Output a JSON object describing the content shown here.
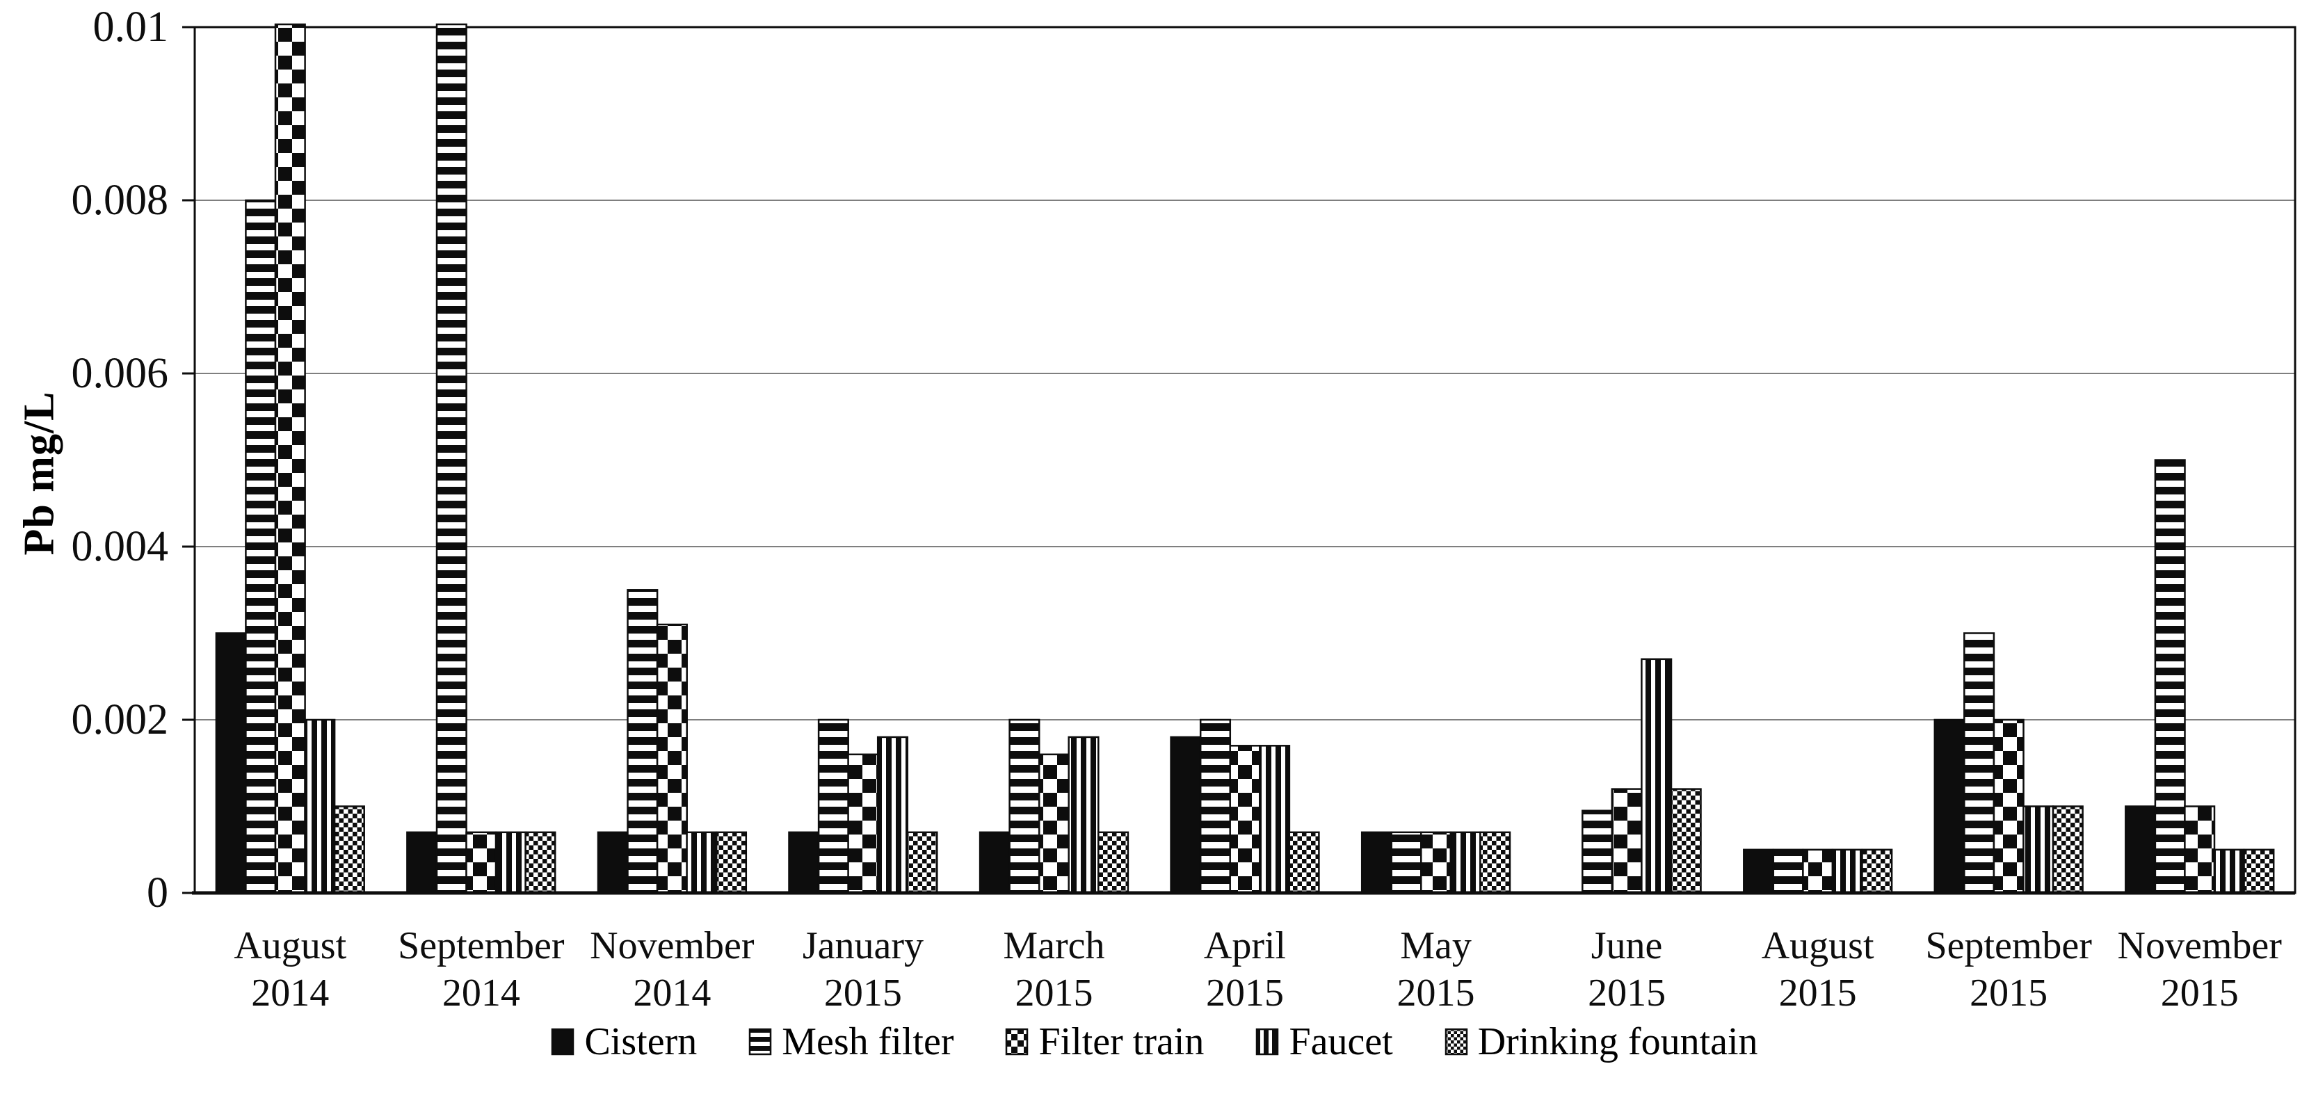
{
  "figure": {
    "background": "#ffffff",
    "ink_color": "#0d0d0d",
    "gridline_color": "#7f7f7f"
  },
  "chart_data": {
    "type": "bar",
    "title": "",
    "xlabel": "",
    "ylabel": "Pb mg/L",
    "ylim": [
      0,
      0.01
    ],
    "yticks": [
      0,
      0.002,
      0.004,
      0.006,
      0.008,
      0.01
    ],
    "ytick_labels": [
      "0",
      "0.002",
      "0.004",
      "0.006",
      "0.008",
      "0.01"
    ],
    "grid": "horizontal",
    "legend_position": "bottom",
    "categories": [
      {
        "month": "August",
        "year": "2014"
      },
      {
        "month": "September",
        "year": "2014"
      },
      {
        "month": "November",
        "year": "2014"
      },
      {
        "month": "January",
        "year": "2015"
      },
      {
        "month": "March",
        "year": "2015"
      },
      {
        "month": "April",
        "year": "2015"
      },
      {
        "month": "May",
        "year": "2015"
      },
      {
        "month": "June",
        "year": "2015"
      },
      {
        "month": "August",
        "year": "2015"
      },
      {
        "month": "September",
        "year": "2015"
      },
      {
        "month": "November",
        "year": "2015"
      }
    ],
    "series": [
      {
        "name": "Cistern",
        "pattern": "solid-black",
        "values": [
          0.003,
          0.0007,
          0.0007,
          0.0007,
          0.0007,
          0.0018,
          0.0007,
          0,
          0.0005,
          0.002,
          0.001
        ]
      },
      {
        "name": "Mesh filter",
        "pattern": "horizontal-stripes",
        "values": [
          0.008,
          0.01,
          0.0035,
          0.002,
          0.002,
          0.002,
          0.0007,
          0.00095,
          0.0005,
          0.003,
          0.005
        ]
      },
      {
        "name": "Filter train",
        "pattern": "checkerboard",
        "values": [
          0.01,
          0.0007,
          0.0031,
          0.0016,
          0.0016,
          0.0017,
          0.0007,
          0.0012,
          0.0005,
          0.002,
          0.001
        ]
      },
      {
        "name": "Faucet",
        "pattern": "vertical-stripes",
        "values": [
          0.002,
          0.0007,
          0.0007,
          0.0018,
          0.0018,
          0.0017,
          0.0007,
          0.0027,
          0.0005,
          0.001,
          0.0005
        ]
      },
      {
        "name": "Drinking fountain",
        "pattern": "fine-checkerboard",
        "values": [
          0.001,
          0.0007,
          0.0007,
          0.0007,
          0.0007,
          0.0007,
          0.0007,
          0.0012,
          0.0005,
          0.001,
          0.0005
        ]
      }
    ],
    "bars_clipped_at_ymax": [
      {
        "series": "Filter train",
        "category_index": 0
      },
      {
        "series": "Mesh filter",
        "category_index": 1
      }
    ]
  }
}
